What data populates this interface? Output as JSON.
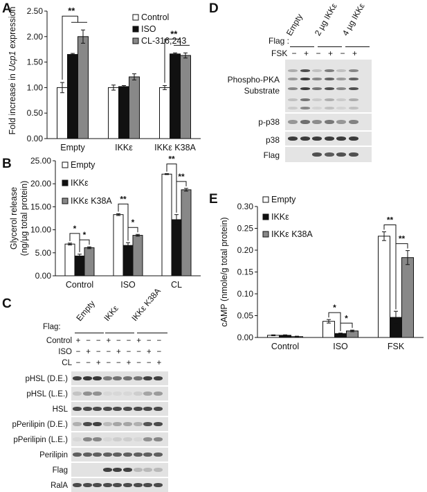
{
  "panels": {
    "A": {
      "letter": "A",
      "chart_data": {
        "type": "bar",
        "ylabel": "Fold increase in Ucp1 expression",
        "ylabel_pre": "Fold increase in ",
        "ylabel_italic": "Ucp1",
        "ylabel_post": " expression",
        "ylim": [
          0,
          2.5
        ],
        "yticks": [
          "0.00",
          "0.50",
          "1.00",
          "1.50",
          "2.00",
          "2.50"
        ],
        "ytick_values": [
          0,
          0.5,
          1.0,
          1.5,
          2.0,
          2.5
        ],
        "categories": [
          "Empty",
          "IKKε",
          "IKKε K38A"
        ],
        "series": [
          {
            "name": "Control",
            "values": [
              1.0,
              1.0,
              1.0
            ],
            "errors": [
              0.1,
              0.05,
              0.04
            ],
            "color": "#ffffff"
          },
          {
            "name": "ISO",
            "values": [
              1.65,
              1.02,
              1.66
            ],
            "errors": [
              0.02,
              0.02,
              0.02
            ],
            "color": "#111111"
          },
          {
            "name": "CL-316,243",
            "values": [
              2.0,
              1.21,
              1.63
            ],
            "errors": [
              0.13,
              0.06,
              0.05
            ],
            "color": "#888888"
          }
        ],
        "annotations": [
          {
            "text": "**",
            "group": 0
          },
          {
            "text": "**",
            "group": 2
          }
        ],
        "legend": "top-right"
      }
    },
    "B": {
      "letter": "B",
      "chart_data": {
        "type": "bar",
        "ylabel_line1": "Glycerol release",
        "ylabel_line2": "(ng/µg total protein)",
        "ylim": [
          0,
          25
        ],
        "yticks": [
          "0.00",
          "5.00",
          "10.00",
          "15.00",
          "20.00",
          "25.00"
        ],
        "ytick_values": [
          0,
          5,
          10,
          15,
          20,
          25
        ],
        "categories": [
          "Control",
          "ISO",
          "CL"
        ],
        "series": [
          {
            "name": "Empty",
            "values": [
              6.9,
              13.3,
              22.1
            ],
            "errors": [
              0.2,
              0.2,
              0.1
            ],
            "color": "#ffffff"
          },
          {
            "name": "IKKε",
            "values": [
              4.3,
              6.6,
              12.2
            ],
            "errors": [
              0.4,
              0.6,
              1.1
            ],
            "color": "#111111"
          },
          {
            "name": "IKKε K38A",
            "values": [
              6.1,
              8.8,
              18.7
            ],
            "errors": [
              0.2,
              0.2,
              0.3
            ],
            "color": "#888888"
          }
        ],
        "annotations": [
          {
            "text": "*",
            "group": 0,
            "pair": [
              0,
              1
            ]
          },
          {
            "text": "*",
            "group": 0,
            "pair": [
              1,
              2
            ]
          },
          {
            "text": "**",
            "group": 1,
            "pair": [
              0,
              1
            ]
          },
          {
            "text": "*",
            "group": 1,
            "pair": [
              1,
              2
            ]
          },
          {
            "text": "**",
            "group": 2,
            "pair": [
              0,
              1
            ]
          },
          {
            "text": "**",
            "group": 2,
            "pair": [
              1,
              2
            ]
          }
        ],
        "legend": "top-left"
      }
    },
    "C": {
      "letter": "C",
      "flag_label": "Flag:",
      "groups": [
        "Empty",
        "IKKε",
        "IKKε K38A"
      ],
      "treatments": [
        {
          "label": "Control",
          "signs": [
            "+",
            "−",
            "−",
            "+",
            "−",
            "−",
            "+",
            "−",
            "−"
          ]
        },
        {
          "label": "ISO",
          "signs": [
            "−",
            "+",
            "−",
            "−",
            "+",
            "−",
            "−",
            "+",
            "−"
          ]
        },
        {
          "label": "CL",
          "signs": [
            "−",
            "−",
            "+",
            "−",
            "−",
            "+",
            "−",
            "−",
            "+"
          ]
        }
      ],
      "blots": [
        {
          "label": "pHSL (D.E.)",
          "intensity": [
            0.85,
            0.9,
            0.9,
            0.55,
            0.6,
            0.6,
            0.6,
            0.85,
            0.85
          ]
        },
        {
          "label": "pHSL (L.E.)",
          "intensity": [
            0.2,
            0.45,
            0.45,
            0.1,
            0.1,
            0.1,
            0.15,
            0.35,
            0.4
          ]
        },
        {
          "label": "HSL",
          "intensity": [
            0.8,
            0.8,
            0.8,
            0.8,
            0.8,
            0.8,
            0.8,
            0.8,
            0.8
          ]
        },
        {
          "label": "pPerilipin (D.E.)",
          "intensity": [
            0.3,
            0.8,
            0.85,
            0.25,
            0.35,
            0.35,
            0.3,
            0.75,
            0.8
          ]
        },
        {
          "label": "pPerilipin (L.E.)",
          "intensity": [
            0.1,
            0.5,
            0.5,
            0.1,
            0.15,
            0.15,
            0.1,
            0.45,
            0.5
          ]
        },
        {
          "label": "Perilipin",
          "intensity": [
            0.7,
            0.7,
            0.7,
            0.7,
            0.7,
            0.7,
            0.7,
            0.7,
            0.7
          ]
        },
        {
          "label": "Flag",
          "intensity": [
            0,
            0,
            0,
            0.85,
            0.85,
            0.85,
            0.25,
            0.25,
            0.25
          ]
        },
        {
          "label": "RalA",
          "intensity": [
            0.8,
            0.8,
            0.8,
            0.8,
            0.8,
            0.8,
            0.8,
            0.8,
            0.8
          ]
        }
      ]
    },
    "D": {
      "letter": "D",
      "flag_label": "Flag :",
      "fsk_label": "FSK",
      "groups": [
        "Empty",
        "2 µg IKKε",
        "4 µg IKKε"
      ],
      "fsk_signs": [
        "−",
        "+",
        "−",
        "+",
        "−",
        "+"
      ],
      "blots": [
        {
          "label": "Phospho-PKA Substrate",
          "label_line1": "Phospho-PKA",
          "label_line2": "Substrate"
        },
        {
          "label": "p-p38"
        },
        {
          "label": "p38"
        },
        {
          "label": "Flag"
        }
      ]
    },
    "E": {
      "letter": "E",
      "chart_data": {
        "type": "bar",
        "ylabel": "cAMP (nmole/g total protein)",
        "ylim": [
          0,
          0.3
        ],
        "yticks": [
          "0.00",
          "0.05",
          "0.10",
          "0.15",
          "0.20",
          "0.25",
          "0.30"
        ],
        "ytick_values": [
          0,
          0.05,
          0.1,
          0.15,
          0.2,
          0.25,
          0.3
        ],
        "categories": [
          "Control",
          "ISO",
          "FSK"
        ],
        "series": [
          {
            "name": "Empty",
            "values": [
              0.005,
              0.037,
              0.232
            ],
            "errors": [
              0.001,
              0.004,
              0.01
            ],
            "color": "#ffffff"
          },
          {
            "name": "IKKε",
            "values": [
              0.005,
              0.009,
              0.046
            ],
            "errors": [
              0.001,
              0.001,
              0.014
            ],
            "color": "#111111"
          },
          {
            "name": "IKKε K38A",
            "values": [
              0.002,
              0.015,
              0.183
            ],
            "errors": [
              0.001,
              0.002,
              0.016
            ],
            "color": "#888888"
          }
        ],
        "annotations": [
          {
            "text": "*",
            "group": 1,
            "pair": [
              0,
              1
            ]
          },
          {
            "text": "*",
            "group": 1,
            "pair": [
              1,
              2
            ]
          },
          {
            "text": "**",
            "group": 2,
            "pair": [
              0,
              1
            ]
          },
          {
            "text": "**",
            "group": 2,
            "pair": [
              1,
              2
            ]
          }
        ],
        "legend": "top-left"
      }
    }
  }
}
